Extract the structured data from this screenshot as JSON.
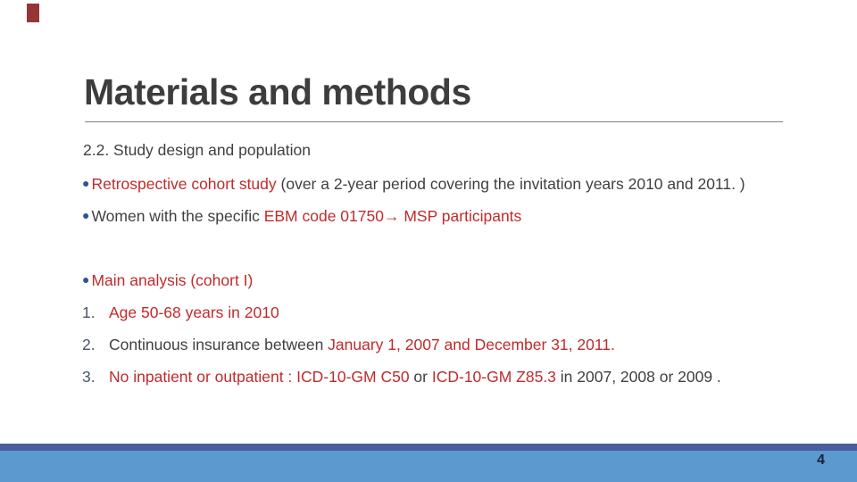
{
  "slide": {
    "title": "Materials and methods",
    "subheading": "2.2. Study design and population",
    "page_number": "4",
    "bullet_glyph": "●",
    "colors": {
      "title": "#3d3d3d",
      "body": "#404040",
      "red": "#c02b2b",
      "number": "#4a5568",
      "bullet": "#2f5496",
      "underline": "#7f7f7f",
      "corner_mark": "#963634",
      "bar_dark": "#4a5ca0",
      "bar_light": "#5c99cf",
      "page_number": "#15203c"
    },
    "bullets": [
      {
        "segments": [
          {
            "text": "Retrospective cohort study",
            "color": "red"
          },
          {
            "text": " (over a 2-year period covering the invitation years 2010 and 2011. )",
            "color": "body"
          }
        ]
      },
      {
        "segments": [
          {
            "text": "Women with the specific ",
            "color": "body"
          },
          {
            "text": "EBM code 01750→ MSP participants",
            "color": "red"
          }
        ]
      },
      {
        "gap_before": true,
        "segments": [
          {
            "text": "Main analysis (cohort I)",
            "color": "red"
          }
        ]
      }
    ],
    "numbered": [
      {
        "number": "1.",
        "segments": [
          {
            "text": "Age 50-68 years in 2010",
            "color": "red"
          }
        ]
      },
      {
        "number": "2.",
        "segments": [
          {
            "text": "Continuous insurance between ",
            "color": "body"
          },
          {
            "text": "January 1, 2007 and December 31, 2011.",
            "color": "red"
          }
        ]
      },
      {
        "number": "3.",
        "segments": [
          {
            "text": "No inpatient or outpatient : ICD-10-GM C50",
            "color": "red"
          },
          {
            "text": " or ",
            "color": "body"
          },
          {
            "text": "ICD-10-GM Z85.3",
            "color": "red"
          },
          {
            "text": " in 2007, 2008 or 2009 .",
            "color": "body"
          }
        ]
      }
    ]
  }
}
